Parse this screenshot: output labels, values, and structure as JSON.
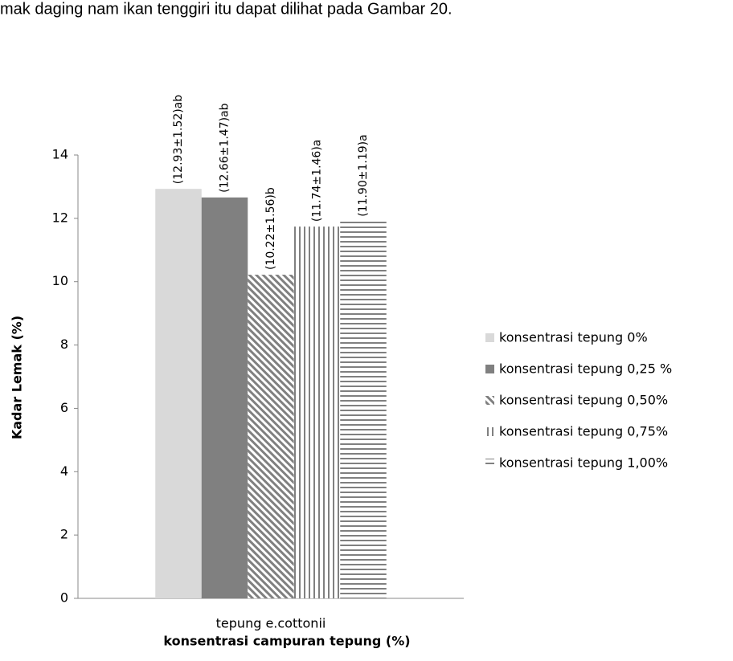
{
  "page_text": "mak daging nam ikan tenggiri itu dapat dilihat pada Gambar 20.",
  "chart_data": {
    "type": "bar",
    "ylabel": "Kadar Lemak (%)",
    "xlabel": "konsentrasi  campuran tepung (%)",
    "categories": [
      "tepung e.cottonii"
    ],
    "series": [
      {
        "name": "konsentrasi tepung 0%",
        "color": "#d9d9d9",
        "fill": "solid",
        "values": [
          12.93
        ],
        "value_labels": [
          "(12.93±1.52)ab"
        ]
      },
      {
        "name": "konsentrasi tepung 0,25 %",
        "color": "#808080",
        "fill": "solid",
        "values": [
          12.66
        ],
        "value_labels": [
          "(12.66±1.47)ab"
        ]
      },
      {
        "name": "konsentrasi tepung 0,50%",
        "color": "#808080",
        "fill": "diagonal",
        "values": [
          10.22
        ],
        "value_labels": [
          "(10.22±1.56)b"
        ]
      },
      {
        "name": "konsentrasi tepung 0,75%",
        "color": "#808080",
        "fill": "vertical",
        "values": [
          11.74
        ],
        "value_labels": [
          "(11.74±1.46)a"
        ]
      },
      {
        "name": "konsentrasi tepung 1,00%",
        "color": "#808080",
        "fill": "horizontal",
        "values": [
          11.9
        ],
        "value_labels": [
          "(11.90±1.19)a"
        ]
      }
    ],
    "ylim": [
      0,
      14
    ],
    "yticks": [
      0,
      2,
      4,
      6,
      8,
      10,
      12,
      14
    ],
    "grid": false,
    "legend": "right"
  }
}
